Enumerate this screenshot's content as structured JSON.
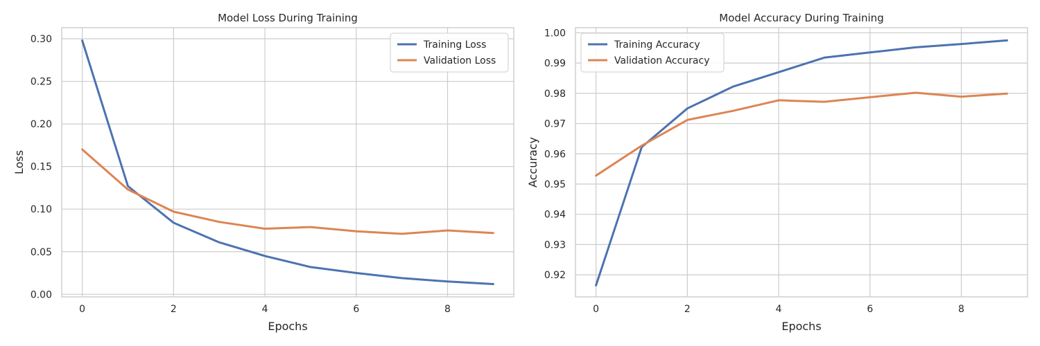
{
  "chart_data": [
    {
      "type": "line",
      "title": "Model Loss During Training",
      "xlabel": "Epochs",
      "ylabel": "Loss",
      "xlim": [
        -0.45,
        9.45
      ],
      "ylim": [
        -0.003,
        0.313
      ],
      "xticks": [
        0,
        2,
        4,
        6,
        8
      ],
      "xtick_labels": [
        "0",
        "2",
        "4",
        "6",
        "8"
      ],
      "yticks": [
        0.0,
        0.05,
        0.1,
        0.15,
        0.2,
        0.25,
        0.3
      ],
      "ytick_labels": [
        "0.00",
        "0.05",
        "0.10",
        "0.15",
        "0.20",
        "0.25",
        "0.30"
      ],
      "grid": true,
      "legend": "upper right",
      "x": [
        0,
        1,
        2,
        3,
        4,
        5,
        6,
        7,
        8,
        9
      ],
      "series": [
        {
          "name": "Training Loss",
          "color": "#4c72b0",
          "values": [
            0.298,
            0.127,
            0.084,
            0.061,
            0.045,
            0.032,
            0.025,
            0.019,
            0.015,
            0.012
          ]
        },
        {
          "name": "Validation Loss",
          "color": "#dd8452",
          "values": [
            0.17,
            0.123,
            0.097,
            0.085,
            0.077,
            0.079,
            0.074,
            0.071,
            0.075,
            0.072
          ]
        }
      ]
    },
    {
      "type": "line",
      "title": "Model Accuracy During Training",
      "xlabel": "Epochs",
      "ylabel": "Accuracy",
      "xlim": [
        -0.45,
        9.45
      ],
      "ylim": [
        0.9127,
        1.0017
      ],
      "xticks": [
        0,
        2,
        4,
        6,
        8
      ],
      "xtick_labels": [
        "0",
        "2",
        "4",
        "6",
        "8"
      ],
      "yticks": [
        0.92,
        0.93,
        0.94,
        0.95,
        0.96,
        0.97,
        0.98,
        0.99,
        1.0
      ],
      "ytick_labels": [
        "0.92",
        "0.93",
        "0.94",
        "0.95",
        "0.96",
        "0.97",
        "0.98",
        "0.99",
        "1.00"
      ],
      "grid": true,
      "legend": "upper left",
      "x": [
        0,
        1,
        2,
        3,
        4,
        5,
        6,
        7,
        8,
        9
      ],
      "series": [
        {
          "name": "Training Accuracy",
          "color": "#4c72b0",
          "values": [
            0.9165,
            0.9622,
            0.975,
            0.9822,
            0.987,
            0.9918,
            0.9935,
            0.9952,
            0.9963,
            0.9975
          ]
        },
        {
          "name": "Validation Accuracy",
          "color": "#dd8452",
          "values": [
            0.9528,
            0.9627,
            0.9712,
            0.9742,
            0.9777,
            0.9772,
            0.9787,
            0.9802,
            0.9789,
            0.9799
          ]
        }
      ]
    }
  ]
}
